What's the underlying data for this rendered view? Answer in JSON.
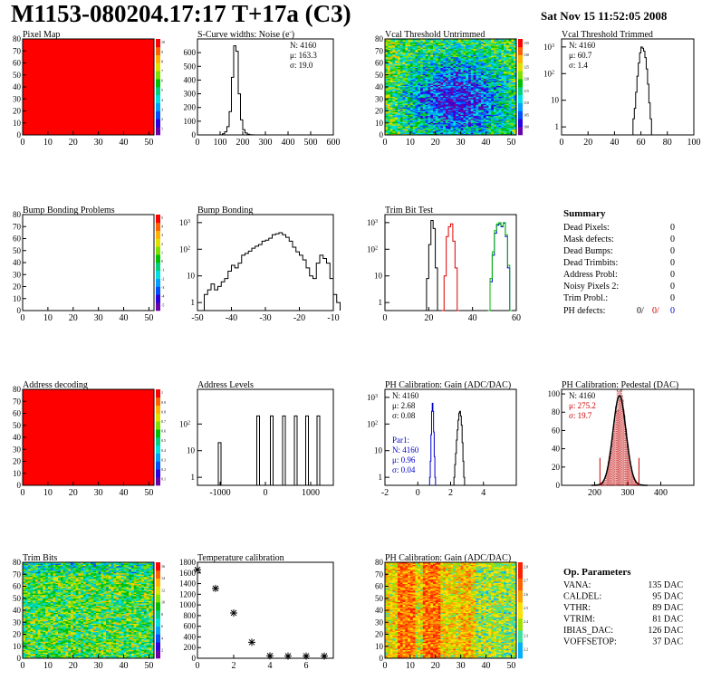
{
  "header": {
    "title": "M1153-080204.17:17 T+17a (C3)",
    "datestamp": "Sat Nov 15 11:52:05 2008"
  },
  "colors": {
    "frame": "#000000",
    "pedestal_fill": "#c00000",
    "red_text": "#cc0000",
    "blue_text": "#0000cc",
    "green_curve": "#00bb00"
  },
  "palette": [
    "#6a00a8",
    "#2a00e0",
    "#0050ff",
    "#00a0ff",
    "#00e0e0",
    "#00d080",
    "#00c000",
    "#80e000",
    "#e0e000",
    "#ffb000",
    "#ff6000",
    "#ff0000"
  ],
  "chart_data": [
    {
      "id": "pixel_map",
      "type": "heatmap",
      "title": "Pixel Map",
      "xlim": [
        0,
        52
      ],
      "ylim": [
        0,
        80
      ],
      "xticks": [
        0,
        10,
        20,
        30,
        40,
        50
      ],
      "yticks": [
        0,
        10,
        20,
        30,
        40,
        50,
        60,
        70,
        80
      ],
      "zlim": [
        0,
        10
      ],
      "zticks": [
        "1",
        "2",
        "3",
        "4",
        "5",
        "6",
        "7",
        "8",
        "9",
        "10"
      ],
      "fill": "uniform-max",
      "fill_color": "#ff0000"
    },
    {
      "id": "noise",
      "type": "histogram",
      "title": "S-Curve widths: Noise (e",
      "title_sup": "-",
      "title_end": ")",
      "xlim": [
        0,
        600
      ],
      "ylim": [
        0,
        700
      ],
      "xticks": [
        0,
        100,
        200,
        300,
        400,
        500,
        600
      ],
      "yticks": [
        0,
        100,
        200,
        300,
        400,
        500,
        600
      ],
      "bins": {
        "start": 100,
        "width": 10,
        "values": [
          1,
          8,
          22,
          60,
          170,
          420,
          650,
          610,
          300,
          110,
          38,
          14,
          5,
          2,
          1
        ]
      },
      "stats": [
        "N: 4160",
        "μ: 163.3",
        "σ: 19.0"
      ]
    },
    {
      "id": "vcal_untrimmed",
      "type": "heatmap",
      "title": "Vcal Threshold Untrimmed",
      "xlim": [
        0,
        52
      ],
      "ylim": [
        0,
        80
      ],
      "xticks": [
        0,
        10,
        20,
        30,
        40,
        50
      ],
      "yticks": [
        0,
        10,
        20,
        30,
        40,
        50,
        60,
        70,
        80
      ],
      "zticks": [
        "100",
        "105",
        "110",
        "115",
        "120",
        "125",
        "130",
        "135"
      ],
      "fill": "noise-center-low",
      "zlim": [
        100,
        138
      ]
    },
    {
      "id": "vcal_trimmed",
      "type": "histogram",
      "title": "Vcal Threshold Trimmed",
      "log": true,
      "ylog_range": [
        0.5,
        2000
      ],
      "xlim": [
        0,
        100
      ],
      "xticks": [
        0,
        20,
        40,
        60,
        80,
        100
      ],
      "ytick_exps": [
        0,
        1,
        2,
        3
      ],
      "bins": {
        "start": 54,
        "width": 1,
        "values": [
          2,
          5,
          20,
          80,
          250,
          600,
          1000,
          900,
          700,
          400,
          150,
          40,
          8,
          2
        ]
      },
      "stats": [
        "N: 4160",
        "μ: 60.7",
        "σ: 1.4"
      ]
    },
    {
      "id": "bump_problems",
      "type": "heatmap",
      "title": "Bump Bonding Problems",
      "xlim": [
        0,
        52
      ],
      "ylim": [
        0,
        80
      ],
      "xticks": [
        0,
        10,
        20,
        30,
        40,
        50
      ],
      "yticks": [
        0,
        10,
        20,
        30,
        40,
        50,
        60,
        70,
        80
      ],
      "zticks": [
        "-5",
        "-4",
        "-3",
        "-2",
        "-1",
        "0",
        "1",
        "2",
        "3",
        "4",
        "5"
      ],
      "fill": "empty"
    },
    {
      "id": "bump_bonding",
      "type": "histogram",
      "title": "Bump Bonding",
      "log": true,
      "ylog_range": [
        0.5,
        2000
      ],
      "xlim": [
        -50,
        -10
      ],
      "xticks": [
        -50,
        -40,
        -30,
        -20,
        -10
      ],
      "ytick_exps": [
        0,
        1,
        2,
        3
      ],
      "bins": {
        "start": -49,
        "width": 1,
        "values": [
          0.5,
          2,
          3,
          5,
          3,
          4,
          6,
          8,
          15,
          25,
          20,
          30,
          60,
          70,
          85,
          110,
          130,
          150,
          200,
          220,
          260,
          350,
          380,
          420,
          350,
          280,
          200,
          120,
          80,
          60,
          40,
          20,
          10,
          8,
          30,
          60,
          45,
          30,
          8,
          2,
          1
        ]
      }
    },
    {
      "id": "trim_bit_test",
      "type": "histogram",
      "title": "Trim Bit Test",
      "log": true,
      "ylog_range": [
        0.5,
        2000
      ],
      "xlim": [
        0,
        60
      ],
      "xticks": [
        0,
        20,
        40,
        60
      ],
      "ytick_exps": [
        0,
        1,
        2,
        3
      ],
      "series": [
        {
          "name": "",
          "color": "#000000",
          "start": 18,
          "width": 1,
          "values": [
            0.5,
            8,
            150,
            1200,
            600,
            20,
            0.5
          ]
        },
        {
          "name": "",
          "color": "#dd0000",
          "start": 26,
          "width": 1,
          "values": [
            0.5,
            10,
            300,
            700,
            900,
            200,
            20,
            0.5
          ]
        },
        {
          "name": "",
          "color": "#0000dd",
          "start": 47,
          "width": 1,
          "values": [
            0.5,
            6,
            60,
            400,
            800,
            900,
            700,
            950,
            300,
            20,
            0.5
          ]
        },
        {
          "name": "",
          "color": "#00bb00",
          "start": 47,
          "width": 1,
          "values": [
            0.5,
            8,
            80,
            500,
            900,
            1000,
            750,
            1000,
            350,
            25,
            0.5
          ]
        }
      ]
    },
    {
      "id": "address_decoding",
      "type": "heatmap",
      "title": "Address decoding",
      "xlim": [
        0,
        52
      ],
      "ylim": [
        0,
        80
      ],
      "xticks": [
        0,
        10,
        20,
        30,
        40,
        50
      ],
      "yticks": [
        0,
        10,
        20,
        30,
        40,
        50,
        60,
        70,
        80
      ],
      "zticks": [
        "0.1",
        "0.2",
        "0.3",
        "0.4",
        "0.5",
        "0.6",
        "0.7",
        "0.8",
        "0.9",
        "1"
      ],
      "fill": "uniform-max",
      "fill_color": "#ff0000"
    },
    {
      "id": "address_levels",
      "type": "histogram",
      "title": "Address Levels",
      "log": true,
      "ylog_range": [
        0.5,
        2000
      ],
      "xlim": [
        -1500,
        1500
      ],
      "xticks": [
        -1000,
        0,
        1000
      ],
      "ytick_exps": [
        0,
        1,
        2
      ],
      "spikes": [
        {
          "x": -1000,
          "v": 20
        },
        {
          "x": -150,
          "v": 200
        },
        {
          "x": 150,
          "v": 200
        },
        {
          "x": 420,
          "v": 200
        },
        {
          "x": 680,
          "v": 200
        },
        {
          "x": 930,
          "v": 200
        },
        {
          "x": 1180,
          "v": 200
        }
      ]
    },
    {
      "id": "ph_gain_hist",
      "type": "histogram",
      "title": "PH Calibration: Gain (ADC/DAC)",
      "log": true,
      "ylog_range": [
        0.5,
        2000
      ],
      "xlim": [
        -2,
        6
      ],
      "xticks": [
        -2,
        0,
        2,
        4
      ],
      "ytick_exps": [
        0,
        1,
        2,
        3
      ],
      "series": [
        {
          "name": "",
          "color": "#0000cc",
          "start": 0.72,
          "width": 0.04,
          "values": [
            1,
            4,
            40,
            300,
            600,
            300,
            50,
            6,
            1
          ]
        },
        {
          "name": "",
          "color": "#000000",
          "start": 2.2,
          "width": 0.05,
          "values": [
            1,
            3,
            8,
            25,
            60,
            140,
            260,
            300,
            200,
            90,
            20,
            4,
            1
          ]
        }
      ],
      "stats": [
        "N: 4160",
        "μ: 2.68",
        "σ: 0.08"
      ],
      "stats_blue": [
        "Par1:",
        "N: 4160",
        "μ: 0.96",
        "σ: 0.04"
      ]
    },
    {
      "id": "ph_pedestal",
      "type": "histogram",
      "title": "PH Calibration: Pedestal (DAC)",
      "xlim": [
        100,
        500
      ],
      "ylim": [
        0,
        105
      ],
      "xticks": [
        200,
        300,
        400
      ],
      "yticks": [
        0,
        20,
        40,
        60,
        80,
        100
      ],
      "gauss": {
        "mean": 275.2,
        "sigma": 19.7,
        "peak": 98,
        "lo": 200,
        "hi": 350,
        "step": 2.5
      },
      "markers": [
        216,
        334
      ],
      "stats": [
        "N: 4160"
      ],
      "stats_red": [
        "μ: 275.2",
        "σ: 19.7"
      ]
    },
    {
      "id": "trim_bits",
      "type": "heatmap",
      "title": "Trim Bits",
      "xlim": [
        0,
        52
      ],
      "ylim": [
        0,
        80
      ],
      "xticks": [
        0,
        10,
        20,
        30,
        40,
        50
      ],
      "yticks": [
        0,
        10,
        20,
        30,
        40,
        50,
        60,
        70,
        80
      ],
      "zticks": [
        "2",
        "4",
        "6",
        "8",
        "10",
        "12",
        "14",
        "16"
      ],
      "fill": "noise-green",
      "zlim": [
        0,
        16
      ]
    },
    {
      "id": "temperature",
      "type": "scatter",
      "title": "Temperature calibration",
      "xlim": [
        0,
        7.5
      ],
      "ylim": [
        0,
        1800
      ],
      "xticks": [
        0,
        2,
        4,
        6
      ],
      "yticks": [
        0,
        200,
        400,
        600,
        800,
        1000,
        1200,
        1400,
        1600,
        1800
      ],
      "x": [
        0,
        1,
        2,
        3,
        4,
        5,
        6,
        7
      ],
      "y": [
        1660,
        1310,
        850,
        300,
        45,
        40,
        40,
        40
      ]
    },
    {
      "id": "ph_gain_map",
      "type": "heatmap",
      "title": "PH Calibration: Gain (ADC/DAC)",
      "xlim": [
        0,
        52
      ],
      "ylim": [
        0,
        80
      ],
      "xticks": [
        0,
        10,
        20,
        30,
        40,
        50
      ],
      "yticks": [
        0,
        10,
        20,
        30,
        40,
        50,
        60,
        70,
        80
      ],
      "zticks": [
        "2.2",
        "2.3",
        "2.4",
        "2.5",
        "2.6",
        "2.7",
        "2.8"
      ],
      "fill": "noise-warm",
      "zlim": [
        2.15,
        2.85
      ]
    }
  ],
  "summary": {
    "heading": "Summary",
    "rows": [
      {
        "label": "Dead Pixels:",
        "value": "0"
      },
      {
        "label": "Mask defects:",
        "value": "0"
      },
      {
        "label": "Dead Bumps:",
        "value": "0"
      },
      {
        "label": "Dead Trimbits:",
        "value": "0"
      },
      {
        "label": "Address Probl:",
        "value": "0"
      },
      {
        "label": "Noisy Pixels 2:",
        "value": "0"
      },
      {
        "label": "Trim Probl.:",
        "value": "0"
      }
    ],
    "ph_label": "PH defects:",
    "ph_values": [
      "0/",
      "0/",
      "0"
    ]
  },
  "op_params": {
    "heading": "Op. Parameters",
    "rows": [
      {
        "label": "VANA:",
        "value": "135 DAC"
      },
      {
        "label": "CALDEL:",
        "value": "95 DAC"
      },
      {
        "label": "VTHR:",
        "value": "89 DAC"
      },
      {
        "label": "VTRIM:",
        "value": "81 DAC"
      },
      {
        "label": "IBIAS_DAC:",
        "value": "126 DAC"
      },
      {
        "label": "VOFFSETOP:",
        "value": "37 DAC"
      }
    ]
  }
}
